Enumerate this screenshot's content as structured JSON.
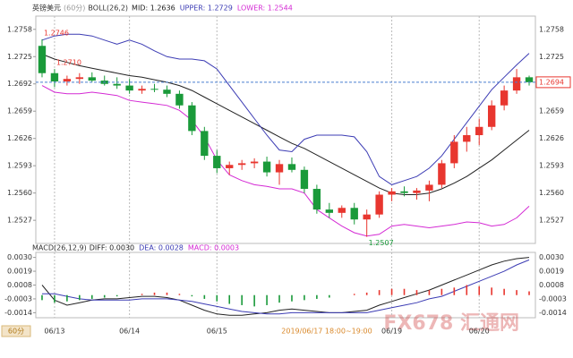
{
  "chart_data": [
    {
      "type": "candlestick",
      "title": "英镑美元",
      "subtitle": "(60分)",
      "indicator": "BOLL(26,2)",
      "categories": [
        null,
        "06/13",
        null,
        null,
        null,
        null,
        null,
        "06/14",
        null,
        null,
        null,
        null,
        null,
        null,
        "06/15",
        null,
        null,
        null,
        null,
        null,
        null,
        null,
        null,
        null,
        null,
        null,
        null,
        null,
        "06/19",
        null,
        null,
        null,
        null,
        null,
        null,
        "06/20",
        null,
        null,
        null,
        null
      ],
      "open": [
        1.2738,
        1.2705,
        1.2695,
        1.2698,
        1.27,
        1.2696,
        1.2692,
        1.269,
        1.2684,
        1.2686,
        1.2685,
        1.268,
        1.2666,
        1.2635,
        1.2605,
        1.259,
        1.2594,
        1.2596,
        1.2598,
        1.2585,
        1.2595,
        1.2588,
        1.2565,
        1.254,
        1.2536,
        1.2542,
        1.2528,
        1.2534,
        1.2558,
        1.2562,
        1.256,
        1.2563,
        1.257,
        1.2596,
        1.2622,
        1.263,
        1.264,
        1.2666,
        1.2684,
        1.27
      ],
      "high": [
        1.2746,
        1.271,
        1.2702,
        1.2705,
        1.2706,
        1.2702,
        1.27,
        1.2698,
        1.269,
        1.2692,
        1.269,
        1.2684,
        1.267,
        1.264,
        1.2612,
        1.2598,
        1.26,
        1.2602,
        1.2604,
        1.26,
        1.2603,
        1.2592,
        1.257,
        1.2548,
        1.2545,
        1.2548,
        1.254,
        1.2562,
        1.2566,
        1.2568,
        1.2566,
        1.2575,
        1.26,
        1.263,
        1.264,
        1.265,
        1.2672,
        1.269,
        1.271,
        1.2702
      ],
      "low": [
        1.27,
        1.2688,
        1.269,
        1.2692,
        1.2694,
        1.269,
        1.2686,
        1.268,
        1.268,
        1.2682,
        1.2676,
        1.2662,
        1.263,
        1.26,
        1.2584,
        1.2582,
        1.2588,
        1.259,
        1.258,
        1.257,
        1.2585,
        1.256,
        1.2535,
        1.253,
        1.253,
        1.2522,
        1.2507,
        1.253,
        1.255,
        1.2556,
        1.2552,
        1.255,
        1.2566,
        1.259,
        1.261,
        1.2618,
        1.2636,
        1.266,
        1.268,
        1.269
      ],
      "close": [
        1.2705,
        1.2695,
        1.2698,
        1.27,
        1.2696,
        1.2692,
        1.269,
        1.2684,
        1.2686,
        1.2685,
        1.268,
        1.2666,
        1.2635,
        1.2605,
        1.259,
        1.2594,
        1.2596,
        1.2598,
        1.2585,
        1.2595,
        1.2588,
        1.2565,
        1.254,
        1.2536,
        1.2542,
        1.2528,
        1.2534,
        1.2558,
        1.2562,
        1.256,
        1.2563,
        1.257,
        1.2596,
        1.2622,
        1.263,
        1.264,
        1.2666,
        1.2684,
        1.27,
        1.2694
      ],
      "up_color": "#e8362f",
      "down_color": "#1a9a3a",
      "series": [
        {
          "name": "MID: 1.2636",
          "color": "#222222",
          "values": [
            1.2728,
            1.2722,
            1.2718,
            1.2714,
            1.2711,
            1.2708,
            1.2705,
            1.2702,
            1.27,
            1.2697,
            1.2694,
            1.269,
            1.2684,
            1.2676,
            1.2668,
            1.266,
            1.2652,
            1.2644,
            1.2636,
            1.2628,
            1.262,
            1.2614,
            1.2606,
            1.2598,
            1.259,
            1.2582,
            1.2574,
            1.2566,
            1.256,
            1.2558,
            1.2558,
            1.256,
            1.2565,
            1.2572,
            1.258,
            1.259,
            1.26,
            1.2612,
            1.2624,
            1.2636
          ]
        },
        {
          "name": "UPPER: 1.2729",
          "color": "#3c3cb4",
          "values": [
            1.2745,
            1.275,
            1.2752,
            1.2752,
            1.275,
            1.2745,
            1.274,
            1.2745,
            1.274,
            1.2732,
            1.2725,
            1.2722,
            1.2722,
            1.272,
            1.271,
            1.269,
            1.267,
            1.265,
            1.263,
            1.2612,
            1.261,
            1.2625,
            1.263,
            1.263,
            1.263,
            1.2628,
            1.261,
            1.258,
            1.257,
            1.2575,
            1.258,
            1.259,
            1.2605,
            1.2625,
            1.2645,
            1.2665,
            1.2685,
            1.27,
            1.2715,
            1.2729
          ]
        },
        {
          "name": "LOWER: 1.2544",
          "color": "#d42ad4",
          "values": [
            1.269,
            1.2682,
            1.268,
            1.268,
            1.2682,
            1.268,
            1.2678,
            1.2672,
            1.267,
            1.2668,
            1.2666,
            1.266,
            1.2648,
            1.2628,
            1.26,
            1.2582,
            1.2575,
            1.257,
            1.2568,
            1.2565,
            1.2565,
            1.256,
            1.254,
            1.253,
            1.252,
            1.2512,
            1.2508,
            1.251,
            1.252,
            1.2522,
            1.252,
            1.2518,
            1.252,
            1.2522,
            1.2525,
            1.2524,
            1.252,
            1.2522,
            1.253,
            1.2544
          ]
        }
      ],
      "markers": [
        1.2746,
        1.2507,
        {
          "value": 1.271,
          "label": "1.2710"
        }
      ],
      "last_price": 1.2694,
      "ylim": [
        1.2499,
        1.2774
      ],
      "yticks": [
        1.2758,
        1.2725,
        1.2692,
        1.2659,
        1.2626,
        1.2593,
        {
          "value": 1.256,
          "label": "1.2560"
        },
        1.2527
      ],
      "crosshair_label": "2019/06/17 18:00~19:00",
      "period_button": "60分",
      "watermark": "FX678 汇通网"
    },
    {
      "type": "macd",
      "title": "MACD(26,12,9)",
      "series": [
        {
          "name": "DIFF: 0.0030",
          "color": "#222222",
          "values": [
            0.0008,
            -0.0004,
            -0.0008,
            -0.0006,
            -0.0004,
            -0.0003,
            -0.0003,
            -0.0002,
            -0.0001,
            -0.0001,
            -0.0002,
            -0.0004,
            -0.0008,
            -0.0012,
            -0.0015,
            -0.0016,
            -0.0016,
            -0.0015,
            -0.0014,
            -0.0012,
            -0.0011,
            -0.0012,
            -0.0013,
            -0.0014,
            -0.0014,
            -0.0013,
            -0.0012,
            -0.0008,
            -0.0005,
            -0.0002,
            0.0001,
            0.0004,
            0.0008,
            0.0012,
            0.0016,
            0.002,
            0.0024,
            0.0027,
            0.0029,
            0.003
          ]
        },
        {
          "name": "DEA: 0.0028",
          "color": "#3c3cb4",
          "values": [
            0.0001,
            0.0001,
            -0.0001,
            -0.0003,
            -0.0004,
            -0.0004,
            -0.0004,
            -0.0004,
            -0.0003,
            -0.0003,
            -0.0003,
            -0.0004,
            -0.0005,
            -0.0007,
            -0.0009,
            -0.0011,
            -0.0013,
            -0.0014,
            -0.0015,
            -0.0015,
            -0.0014,
            -0.0014,
            -0.0014,
            -0.0014,
            -0.0014,
            -0.0014,
            -0.0014,
            -0.0012,
            -0.001,
            -0.0008,
            -0.0006,
            -0.0003,
            -0.0001,
            0.0003,
            0.0007,
            0.0011,
            0.0015,
            0.0019,
            0.0024,
            0.0028
          ]
        },
        {
          "name": "MACD: 0.0003",
          "color": "#d42ad4",
          "type": "bar",
          "up_color": "#e8362f",
          "down_color": "#1a9a3a",
          "values": [
            -0.0004,
            -0.0006,
            -0.0005,
            -0.0004,
            -0.0003,
            -0.0002,
            -0.0001,
            0.0,
            0.0001,
            0.0002,
            0.0002,
            0.0001,
            -0.0001,
            -0.0003,
            -0.0005,
            -0.0007,
            -0.0008,
            -0.0009,
            -0.0008,
            -0.0006,
            -0.0005,
            -0.0004,
            -0.0003,
            -0.0002,
            0.0,
            0.0001,
            0.0002,
            0.0004,
            0.0005,
            0.0005,
            0.0004,
            0.0004,
            0.0005,
            0.0006,
            0.0008,
            0.0007,
            0.0006,
            0.0005,
            0.0004,
            0.0003
          ]
        }
      ],
      "ylim": [
        -0.0018,
        0.0034
      ],
      "yticks": [
        {
          "value": 0.003,
          "label": "0.0030"
        },
        0.0019,
        0.0008,
        -0.0003,
        -0.0014
      ]
    }
  ]
}
